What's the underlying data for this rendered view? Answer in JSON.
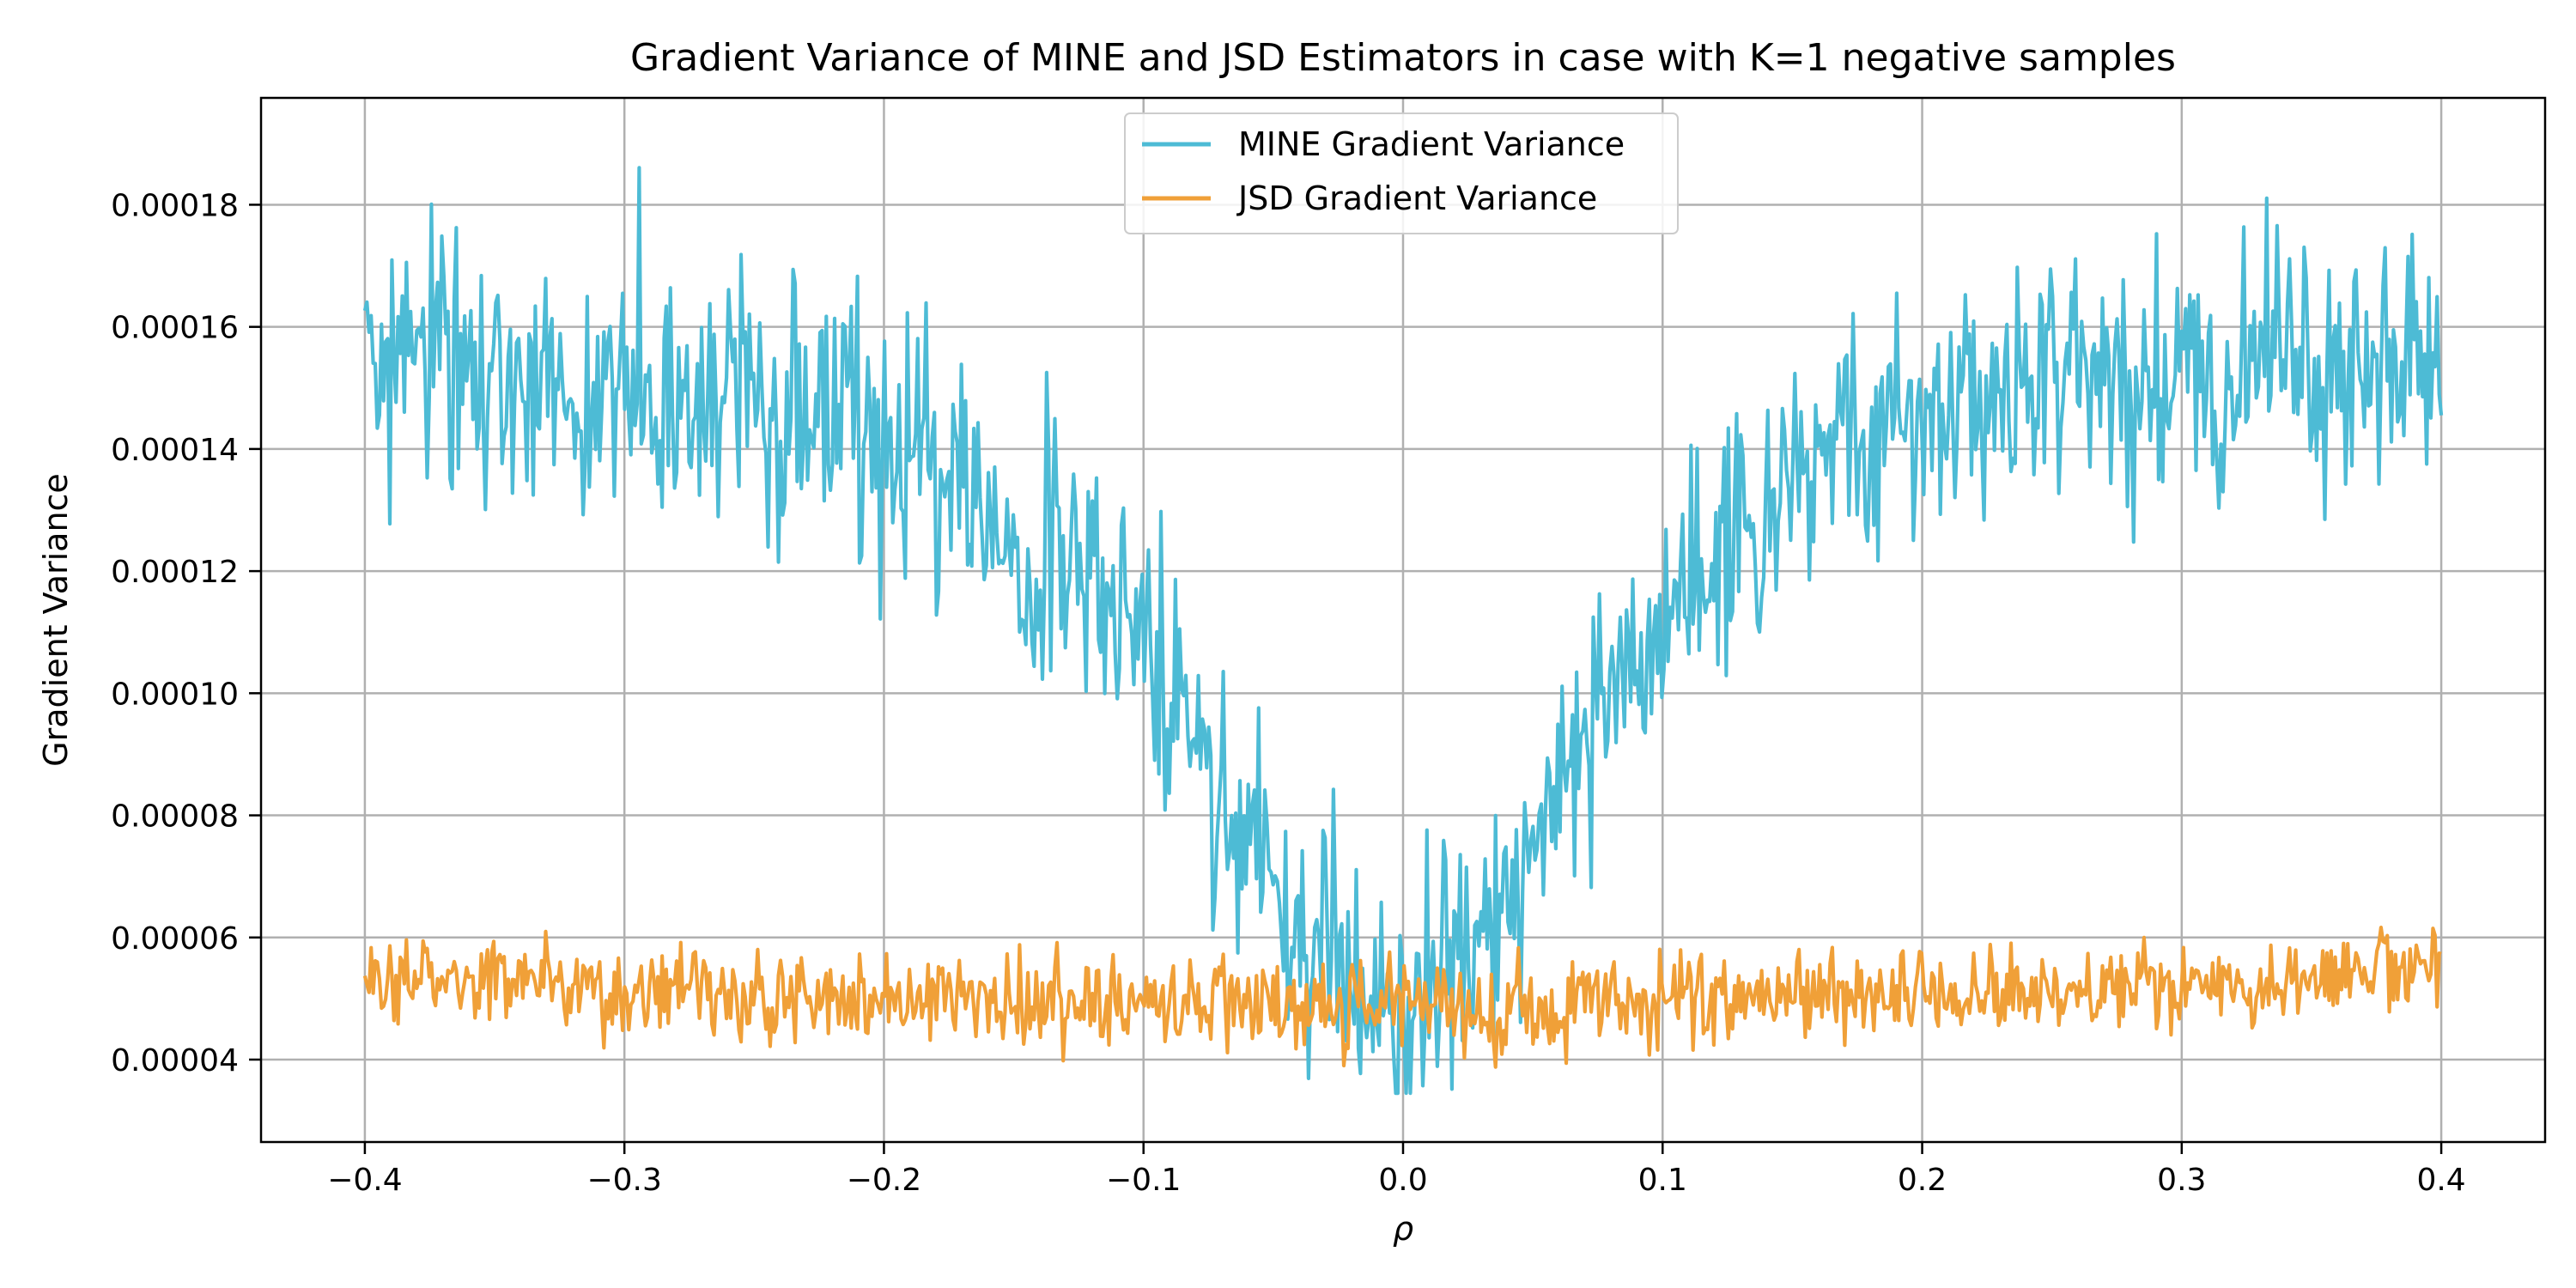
{
  "chart_data": {
    "type": "line",
    "title": "Gradient Variance of MINE and JSD Estimators in case with K=1 negative samples",
    "xlabel": "ρ",
    "ylabel": "Gradient Variance",
    "xlim": [
      -0.44,
      0.44
    ],
    "ylim": [
      2.65e-05,
      0.0001975
    ],
    "grid": true,
    "legend_position": "top-center",
    "x_ticks": [
      -0.4,
      -0.3,
      -0.2,
      -0.1,
      0.0,
      0.1,
      0.2,
      0.3,
      0.4
    ],
    "x_tick_labels": [
      "−0.4",
      "−0.3",
      "−0.2",
      "−0.1",
      "0.0",
      "0.1",
      "0.2",
      "0.3",
      "0.4"
    ],
    "y_ticks": [
      4e-05,
      6e-05,
      8e-05,
      0.0001,
      0.00012,
      0.00014,
      0.00016,
      0.00018
    ],
    "y_tick_labels": [
      "0.00004",
      "0.00006",
      "0.00008",
      "0.00010",
      "0.00012",
      "0.00014",
      "0.00016",
      "0.00018"
    ],
    "x": [
      -0.4,
      -0.38,
      -0.36,
      -0.34,
      -0.32,
      -0.3,
      -0.28,
      -0.26,
      -0.24,
      -0.22,
      -0.2,
      -0.18,
      -0.16,
      -0.14,
      -0.12,
      -0.1,
      -0.09,
      -0.08,
      -0.07,
      -0.06,
      -0.05,
      -0.04,
      -0.03,
      -0.02,
      -0.01,
      0.0,
      0.01,
      0.02,
      0.03,
      0.04,
      0.05,
      0.06,
      0.07,
      0.08,
      0.09,
      0.1,
      0.12,
      0.14,
      0.16,
      0.18,
      0.2,
      0.22,
      0.24,
      0.26,
      0.28,
      0.3,
      0.32,
      0.34,
      0.36,
      0.38,
      0.4
    ],
    "series": [
      {
        "name": "MINE Gradient Variance",
        "color": "#4dbbd5",
        "values": [
          0.000152,
          0.000155,
          0.000152,
          0.00015,
          0.000153,
          0.00015,
          0.000148,
          0.000151,
          0.000147,
          0.000145,
          0.000138,
          0.000134,
          0.00013,
          0.000124,
          0.000118,
          0.00011,
          9.7e-05,
          9e-05,
          8.2e-05,
          7.5e-05,
          6.8e-05,
          6.3e-05,
          5.8e-05,
          5.4e-05,
          5e-05,
          4.8e-05,
          5.2e-05,
          5.6e-05,
          6.1e-05,
          6.7e-05,
          7.5e-05,
          8.6e-05,
          9.5e-05,
          0.000101,
          0.000106,
          0.000111,
          0.000122,
          0.000131,
          0.000137,
          0.000142,
          0.000146,
          0.000148,
          0.000149,
          0.00015,
          0.000151,
          0.000151,
          0.000152,
          0.000153,
          0.000152,
          0.000153,
          0.000154
        ],
        "noise": 2.6e-05,
        "min_value": 3.45e-05,
        "peak_value": 0.000189
      },
      {
        "name": "JSD Gradient Variance",
        "color": "#f0a038",
        "values": [
          5.2e-05,
          5.4e-05,
          5.3e-05,
          5.2e-05,
          5.1e-05,
          5.1e-05,
          5.1e-05,
          5e-05,
          5e-05,
          5e-05,
          5e-05,
          5e-05,
          5e-05,
          4.9e-05,
          4.9e-05,
          4.9e-05,
          4.9e-05,
          4.9e-05,
          4.9e-05,
          4.9e-05,
          4.9e-05,
          4.9e-05,
          4.9e-05,
          4.9e-05,
          4.9e-05,
          4.9e-05,
          4.9e-05,
          4.9e-05,
          4.9e-05,
          4.9e-05,
          4.9e-05,
          4.9e-05,
          4.9e-05,
          4.9e-05,
          4.9e-05,
          4.9e-05,
          5e-05,
          5e-05,
          5e-05,
          5e-05,
          5.1e-05,
          5.1e-05,
          5.1e-05,
          5.2e-05,
          5.2e-05,
          5.2e-05,
          5.3e-05,
          5.3e-05,
          5.4e-05,
          5.5e-05,
          5.6e-05
        ],
        "noise": 9.2e-06,
        "min_value": 3.7e-05,
        "peak_value": 6.85e-05
      }
    ],
    "samples_per_series": 1000
  }
}
